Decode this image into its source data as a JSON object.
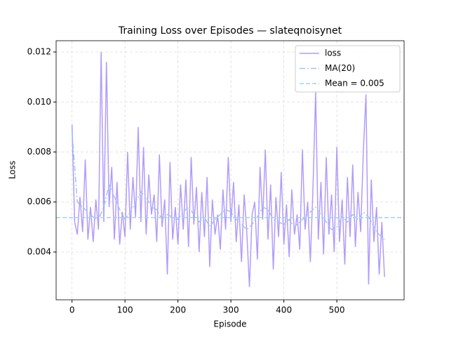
{
  "chart_data": {
    "type": "line",
    "title": "Training Loss over Episodes — slateqnoisynet",
    "xlabel": "Episode",
    "ylabel": "Loss",
    "xlim": [
      -30,
      627
    ],
    "ylim": [
      0.00209,
      0.01245
    ],
    "xticks": [
      0,
      100,
      200,
      300,
      400,
      500
    ],
    "yticks": [
      0.004,
      0.006,
      0.008,
      {
        "value": 0.01,
        "label": "0.010"
      },
      0.012
    ],
    "grid": true,
    "legend": "upper right",
    "series": [
      {
        "name": "loss",
        "color": "#b19cfa",
        "style": "solid",
        "x": [
          0,
          5,
          10,
          15,
          20,
          25,
          30,
          35,
          40,
          45,
          50,
          55,
          60,
          65,
          70,
          75,
          80,
          85,
          90,
          95,
          100,
          105,
          110,
          115,
          120,
          125,
          130,
          135,
          140,
          145,
          150,
          155,
          160,
          165,
          170,
          175,
          180,
          185,
          190,
          195,
          200,
          205,
          210,
          215,
          220,
          225,
          230,
          235,
          240,
          245,
          250,
          255,
          260,
          265,
          270,
          275,
          280,
          285,
          290,
          295,
          300,
          305,
          310,
          315,
          320,
          325,
          330,
          335,
          340,
          345,
          350,
          355,
          360,
          365,
          370,
          375,
          380,
          385,
          390,
          395,
          400,
          405,
          410,
          415,
          420,
          425,
          430,
          435,
          440,
          445,
          450,
          455,
          460,
          465,
          470,
          475,
          480,
          485,
          490,
          495,
          500,
          505,
          510,
          515,
          520,
          525,
          530,
          535,
          540,
          545,
          550,
          555,
          560,
          565,
          570,
          575,
          580,
          585,
          590
        ],
        "values": [
          0.0091,
          0.0052,
          0.0047,
          0.0062,
          0.0048,
          0.0077,
          0.0045,
          0.0058,
          0.0044,
          0.0061,
          0.0049,
          0.012,
          0.0052,
          0.0116,
          0.0058,
          0.0074,
          0.0045,
          0.0068,
          0.0043,
          0.0056,
          0.0046,
          0.008,
          0.0049,
          0.007,
          0.0054,
          0.009,
          0.0052,
          0.0082,
          0.0047,
          0.0071,
          0.0055,
          0.0063,
          0.0044,
          0.0079,
          0.005,
          0.0061,
          0.0031,
          0.0076,
          0.0045,
          0.0058,
          0.0043,
          0.0067,
          0.0049,
          0.0069,
          0.0042,
          0.0078,
          0.0051,
          0.0066,
          0.004,
          0.0064,
          0.0046,
          0.007,
          0.0034,
          0.0061,
          0.0047,
          0.0055,
          0.0041,
          0.0065,
          0.0049,
          0.0078,
          0.0052,
          0.0068,
          0.0044,
          0.0059,
          0.0036,
          0.0063,
          0.0048,
          0.0026,
          0.0055,
          0.006,
          0.0037,
          0.0074,
          0.0053,
          0.0081,
          0.0045,
          0.0067,
          0.0033,
          0.0062,
          0.0046,
          0.0072,
          0.0043,
          0.0059,
          0.0038,
          0.0065,
          0.0047,
          0.0055,
          0.0041,
          0.0081,
          0.0049,
          0.006,
          0.0036,
          0.0066,
          0.0104,
          0.0045,
          0.0068,
          0.0039,
          0.0078,
          0.0047,
          0.0063,
          0.004,
          0.0082,
          0.0044,
          0.0061,
          0.0035,
          0.007,
          0.0046,
          0.0075,
          0.0042,
          0.0064,
          0.0048,
          0.008,
          0.0103,
          0.0027,
          0.0069,
          0.0044,
          0.0058,
          0.0031,
          0.0052,
          0.003
        ]
      },
      {
        "name": "MA(20)",
        "color": "#a3c4f0",
        "style": "dashdot",
        "x": [
          0,
          10,
          20,
          30,
          40,
          50,
          60,
          70,
          80,
          90,
          100,
          110,
          120,
          130,
          140,
          150,
          160,
          170,
          180,
          190,
          200,
          210,
          220,
          230,
          240,
          250,
          260,
          270,
          280,
          290,
          300,
          310,
          320,
          330,
          340,
          350,
          360,
          370,
          380,
          390,
          400,
          410,
          420,
          430,
          440,
          450,
          460,
          470,
          480,
          490,
          500,
          510,
          520,
          530,
          540,
          550,
          560,
          570,
          580,
          590
        ],
        "values": [
          0.0088,
          0.006,
          0.0058,
          0.0056,
          0.0054,
          0.0053,
          0.0058,
          0.0067,
          0.0062,
          0.0057,
          0.0053,
          0.0056,
          0.006,
          0.0064,
          0.0062,
          0.0058,
          0.0057,
          0.0053,
          0.0055,
          0.0054,
          0.0053,
          0.0056,
          0.0058,
          0.0055,
          0.0052,
          0.0054,
          0.005,
          0.0053,
          0.0055,
          0.0057,
          0.0056,
          0.0053,
          0.0051,
          0.0049,
          0.0051,
          0.0054,
          0.0058,
          0.0057,
          0.0053,
          0.0052,
          0.0051,
          0.0053,
          0.005,
          0.0052,
          0.0054,
          0.0056,
          0.0058,
          0.0055,
          0.0052,
          0.0049,
          0.005,
          0.0054,
          0.0052,
          0.0055,
          0.0053,
          0.0056,
          0.0054,
          0.005,
          0.0047,
          0.0045
        ]
      }
    ],
    "hline": {
      "name": "Mean = 0.005",
      "value": 0.00538,
      "color": "#a9cff5",
      "style": "dashed"
    }
  }
}
